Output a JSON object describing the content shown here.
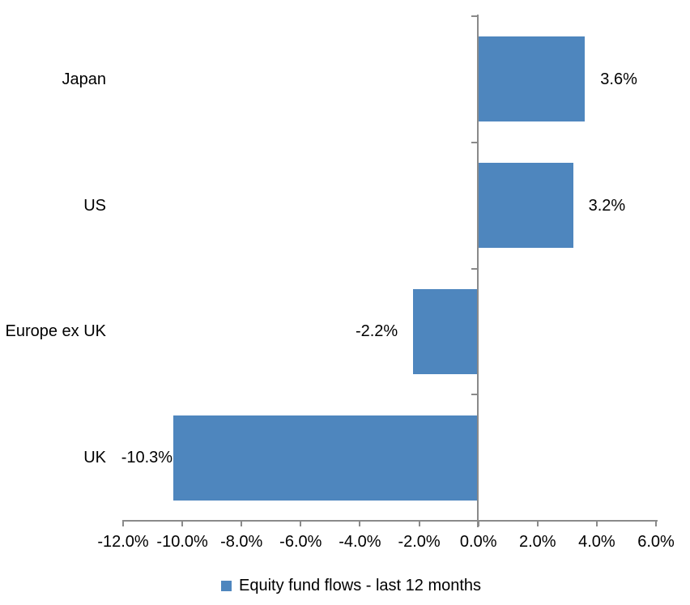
{
  "chart_data": {
    "type": "bar",
    "orientation": "horizontal",
    "title": "",
    "categories": [
      "Japan",
      "US",
      "Europe ex UK",
      "UK"
    ],
    "values": [
      3.6,
      3.2,
      -2.2,
      -10.3
    ],
    "data_labels": [
      "3.6%",
      "3.2%",
      "-2.2%",
      "-10.3%"
    ],
    "label_gaps": [
      19,
      19,
      19,
      1
    ],
    "xlim": [
      -12,
      6
    ],
    "x_tick_values": [
      -12,
      -10,
      -8,
      -6,
      -4,
      -2,
      0,
      2,
      4,
      6
    ],
    "x_tick_labels": [
      "-12.0%",
      "-10.0%",
      "-8.0%",
      "-6.0%",
      "-4.0%",
      "-2.0%",
      "0.0%",
      "2.0%",
      "4.0%",
      "6.0%"
    ],
    "grid": false,
    "legend_position": "bottom",
    "legend": [
      {
        "label": "Equity fund flows - last 12 months",
        "color": "#4E86BE"
      }
    ],
    "colors": {
      "bar": "#4E86BE",
      "axis": "#8A8A8A",
      "text": "#000000",
      "background": "#FFFFFF"
    }
  }
}
